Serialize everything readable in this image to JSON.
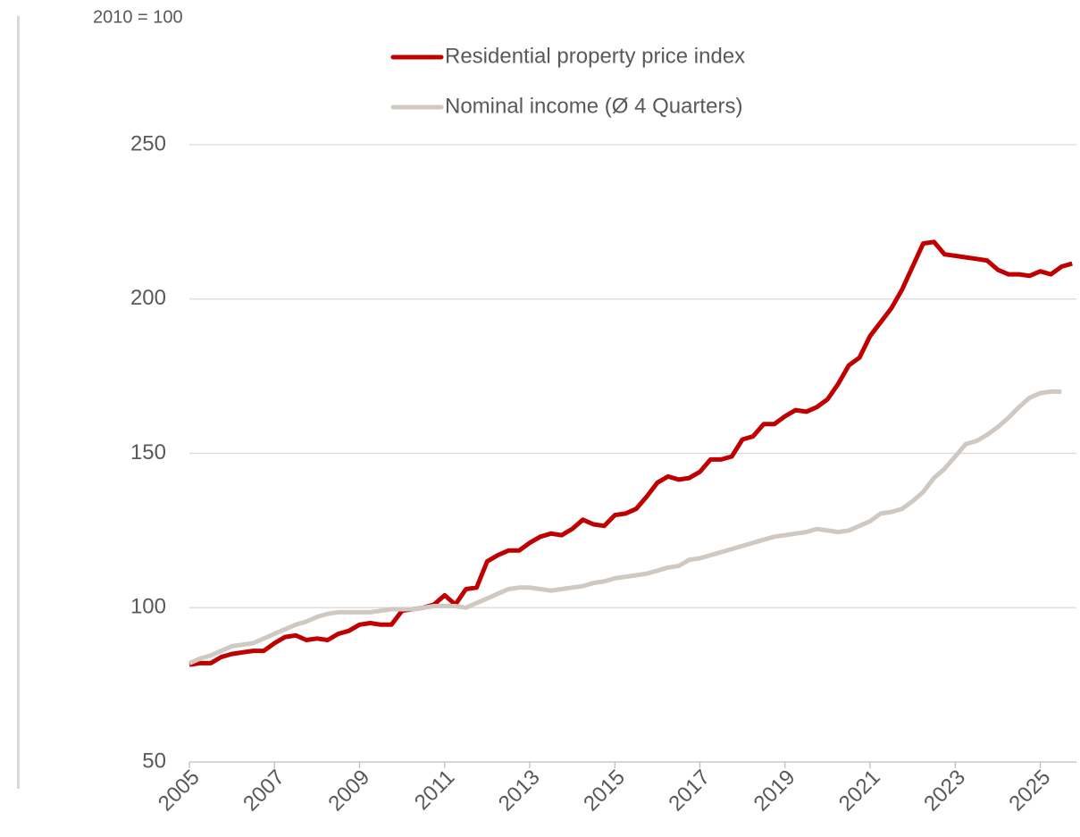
{
  "chart_data": {
    "type": "line",
    "subtitle": "2010 = 100",
    "x": [
      2005,
      2005.25,
      2005.5,
      2005.75,
      2006,
      2006.25,
      2006.5,
      2006.75,
      2007,
      2007.25,
      2007.5,
      2007.75,
      2008,
      2008.25,
      2008.5,
      2008.75,
      2009,
      2009.25,
      2009.5,
      2009.75,
      2010,
      2010.25,
      2010.5,
      2010.75,
      2011,
      2011.25,
      2011.5,
      2011.75,
      2012,
      2012.25,
      2012.5,
      2012.75,
      2013,
      2013.25,
      2013.5,
      2013.75,
      2014,
      2014.25,
      2014.5,
      2014.75,
      2015,
      2015.25,
      2015.5,
      2015.75,
      2016,
      2016.25,
      2016.5,
      2016.75,
      2017,
      2017.25,
      2017.5,
      2017.75,
      2018,
      2018.25,
      2018.5,
      2018.75,
      2019,
      2019.25,
      2019.5,
      2019.75,
      2020,
      2020.25,
      2020.5,
      2020.75,
      2021,
      2021.25,
      2021.5,
      2021.75,
      2022,
      2022.25,
      2022.5,
      2022.75,
      2023,
      2023.25,
      2023.5,
      2023.75,
      2024,
      2024.25,
      2024.5,
      2024.75,
      2025,
      2025.25,
      2025.5,
      2025.75
    ],
    "series": [
      {
        "name": "Residential property price index",
        "color": "#c00000",
        "values": [
          81.5,
          82,
          82,
          84,
          85,
          85.5,
          86,
          86,
          88.5,
          90.5,
          91,
          89.5,
          90,
          89.5,
          91.5,
          92.5,
          94.5,
          95,
          94.5,
          94.5,
          99,
          99.5,
          100,
          101,
          104,
          101,
          106,
          106.5,
          115,
          117,
          118.5,
          118.5,
          121,
          123,
          124,
          123.5,
          125.5,
          128.5,
          127,
          126.5,
          130,
          130.5,
          132,
          136,
          140.5,
          142.5,
          141.5,
          142,
          144,
          148,
          148,
          149,
          154.5,
          155.5,
          159.5,
          159.5,
          162,
          164,
          163.5,
          165,
          167.5,
          172.5,
          178.5,
          181,
          188,
          192.5,
          197,
          203,
          210.5,
          218,
          218.5,
          214.5,
          214,
          213.5,
          213,
          212.5,
          209.5,
          208,
          208,
          207.5,
          209,
          208,
          210.5,
          211.5
        ]
      },
      {
        "name": "Nominal income (Ø 4 Quarters)",
        "color": "#d0c8c2",
        "values": [
          82,
          83.5,
          84.5,
          86,
          87.5,
          88,
          88.5,
          90,
          91.5,
          93,
          94.5,
          95.5,
          97,
          98,
          98.5,
          98.5,
          98.5,
          98.5,
          99,
          99.5,
          99.5,
          99.5,
          100,
          100.5,
          100.5,
          100.5,
          100,
          101.5,
          103,
          104.5,
          106,
          106.5,
          106.5,
          106,
          105.5,
          106,
          106.5,
          107,
          108,
          108.5,
          109.5,
          110,
          110.5,
          111,
          112,
          113,
          113.5,
          115.5,
          116,
          117,
          118,
          119,
          120,
          121,
          122,
          123,
          123.5,
          124,
          124.5,
          125.5,
          125,
          124.5,
          125,
          126.5,
          128,
          130.5,
          131,
          132,
          134.5,
          137.5,
          142,
          145,
          149,
          153,
          154,
          156,
          158.5,
          161.5,
          165,
          168,
          169.5,
          170,
          170,
          null
        ]
      }
    ],
    "xlim": [
      2005,
      2025.85
    ],
    "xticks": [
      2005,
      2007,
      2009,
      2011,
      2013,
      2015,
      2017,
      2019,
      2021,
      2023,
      2025
    ],
    "ylim": [
      50,
      250
    ],
    "yticks": [
      50,
      100,
      150,
      200,
      250
    ],
    "grid": true
  }
}
